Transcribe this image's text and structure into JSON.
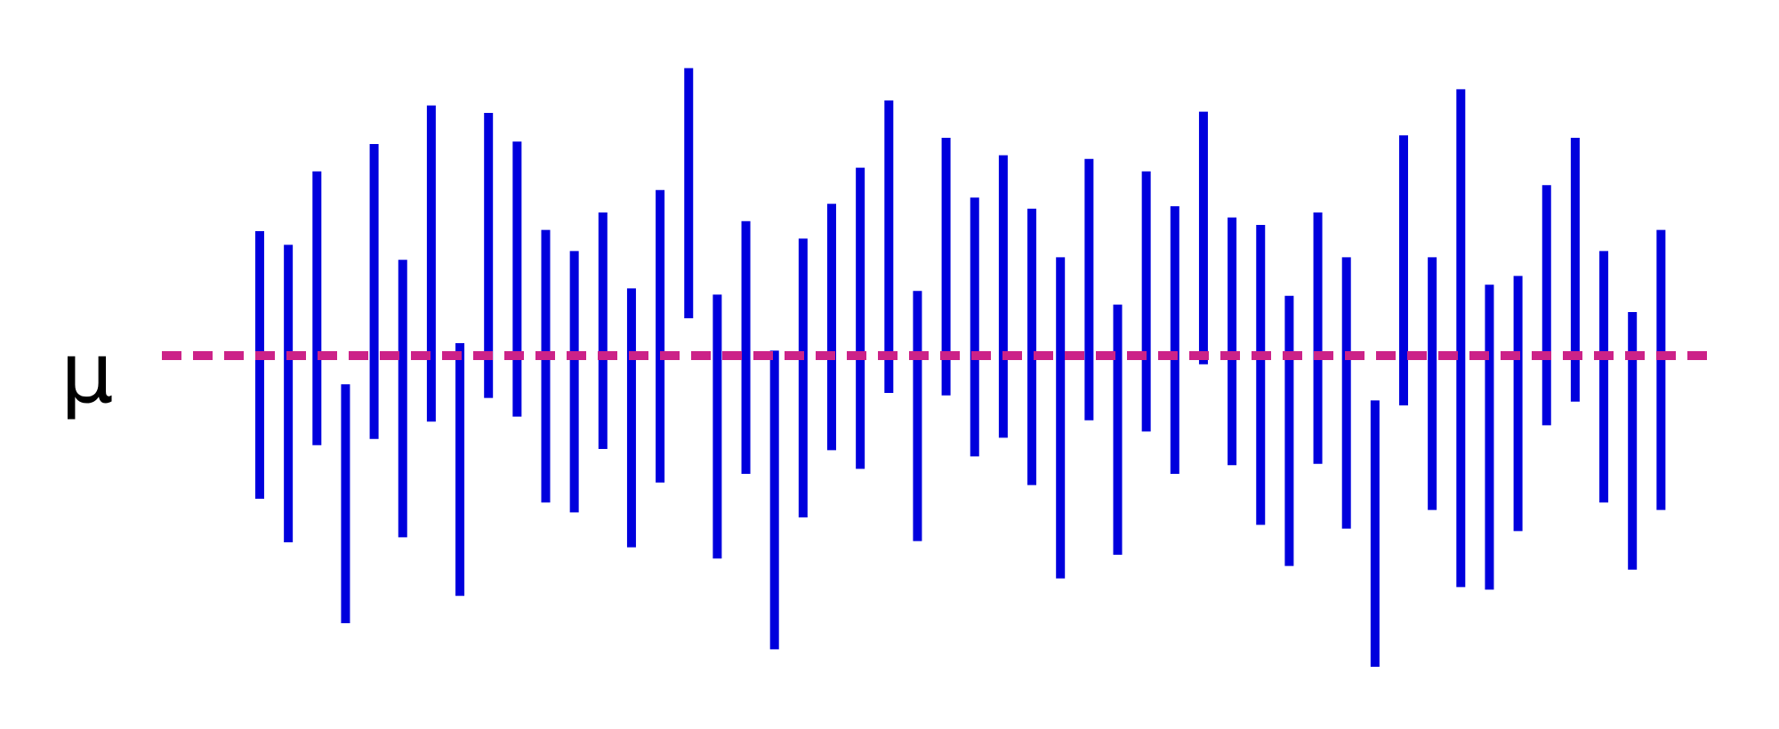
{
  "chart_data": {
    "type": "interval",
    "description_label": "μ",
    "mean_value": 0.0,
    "series": [
      {
        "color": "#0000dd",
        "intervals": [
          {
            "lower": -1.15,
            "upper": 1.0
          },
          {
            "lower": -1.5,
            "upper": 0.89
          },
          {
            "lower": -0.72,
            "upper": 1.48
          },
          {
            "lower": -2.15,
            "upper": -0.23
          },
          {
            "lower": -0.67,
            "upper": 1.7
          },
          {
            "lower": -1.46,
            "upper": 0.77
          },
          {
            "lower": -0.53,
            "upper": 2.01
          },
          {
            "lower": -1.93,
            "upper": 0.1
          },
          {
            "lower": -0.34,
            "upper": 1.95
          },
          {
            "lower": -0.49,
            "upper": 1.72
          },
          {
            "lower": -1.18,
            "upper": 1.01
          },
          {
            "lower": -1.26,
            "upper": 0.84
          },
          {
            "lower": -0.75,
            "upper": 1.15
          },
          {
            "lower": -1.54,
            "upper": 0.54
          },
          {
            "lower": -1.02,
            "upper": 1.33
          },
          {
            "lower": 0.3,
            "upper": 2.31
          },
          {
            "lower": -1.63,
            "upper": 0.49
          },
          {
            "lower": -0.95,
            "upper": 1.08
          },
          {
            "lower": -2.36,
            "upper": 0.04
          },
          {
            "lower": -1.3,
            "upper": 0.94
          },
          {
            "lower": -0.76,
            "upper": 1.22
          },
          {
            "lower": -0.91,
            "upper": 1.51
          },
          {
            "lower": -0.3,
            "upper": 2.05
          },
          {
            "lower": -1.49,
            "upper": 0.52
          },
          {
            "lower": -0.32,
            "upper": 1.75
          },
          {
            "lower": -0.81,
            "upper": 1.27
          },
          {
            "lower": -0.66,
            "upper": 1.61
          },
          {
            "lower": -1.04,
            "upper": 1.18
          },
          {
            "lower": -1.79,
            "upper": 0.79
          },
          {
            "lower": -0.52,
            "upper": 1.58
          },
          {
            "lower": -1.6,
            "upper": 0.41
          },
          {
            "lower": -0.61,
            "upper": 1.48
          },
          {
            "lower": -0.95,
            "upper": 1.2
          },
          {
            "lower": -0.07,
            "upper": 1.96
          },
          {
            "lower": -0.88,
            "upper": 1.11
          },
          {
            "lower": -1.36,
            "upper": 1.05
          },
          {
            "lower": -1.69,
            "upper": 0.48
          },
          {
            "lower": -0.87,
            "upper": 1.15
          },
          {
            "lower": -1.39,
            "upper": 0.79
          },
          {
            "lower": -2.5,
            "upper": -0.36
          },
          {
            "lower": -0.4,
            "upper": 1.77
          },
          {
            "lower": -1.24,
            "upper": 0.79
          },
          {
            "lower": -1.86,
            "upper": 2.14
          },
          {
            "lower": -1.88,
            "upper": 0.57
          },
          {
            "lower": -1.41,
            "upper": 0.64
          },
          {
            "lower": -0.56,
            "upper": 1.37
          },
          {
            "lower": -0.37,
            "upper": 1.75
          },
          {
            "lower": -1.18,
            "upper": 0.84
          },
          {
            "lower": -1.72,
            "upper": 0.35
          },
          {
            "lower": -1.24,
            "upper": 1.01
          }
        ]
      },
      {
        "name": "μ",
        "color": "#cc2288",
        "style": "dashed"
      }
    ]
  }
}
